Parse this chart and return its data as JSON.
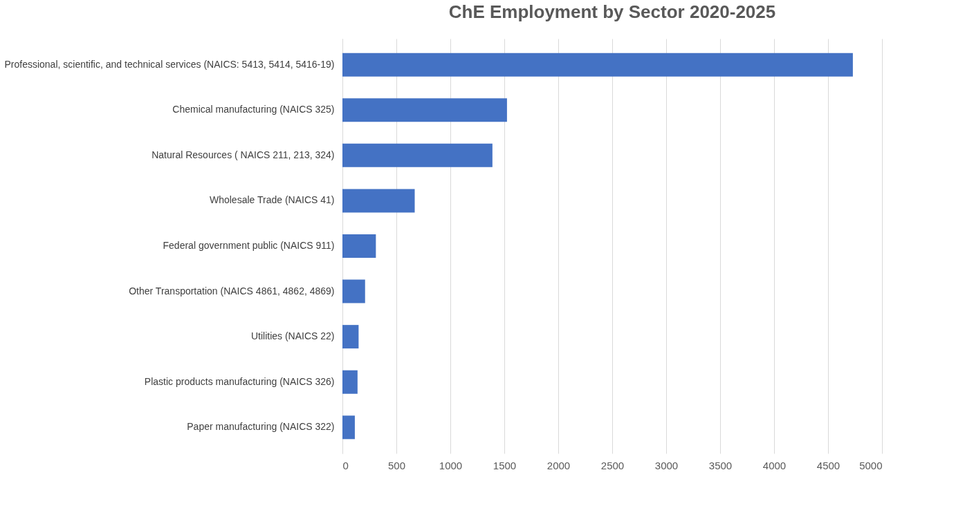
{
  "chart_data": {
    "type": "bar",
    "orientation": "horizontal",
    "title": "ChE Employment by Sector 2020-2025",
    "categories": [
      "Professional, scientific, and technical services (NAICS: 5413, 5414, 5416-19)",
      "Chemical manufacturing (NAICS 325)",
      "Natural Resources ( NAICS 211, 213, 324)",
      "Wholesale Trade (NAICS 41)",
      "Federal government public  (NAICS 911)",
      "Other Transportation (NAICS 4861, 4862, 4869)",
      "Utilities (NAICS 22)",
      "Plastic products manufacturing (NAICS 326)",
      "Paper manufacturing (NAICS 322)"
    ],
    "values": [
      4730,
      1525,
      1390,
      670,
      310,
      210,
      150,
      140,
      115
    ],
    "color": "#4472c4",
    "xlim": [
      0,
      5000
    ],
    "xticks": [
      0,
      500,
      1000,
      1500,
      2000,
      2500,
      3000,
      3500,
      4000,
      4500,
      5000
    ],
    "grid": "x"
  }
}
